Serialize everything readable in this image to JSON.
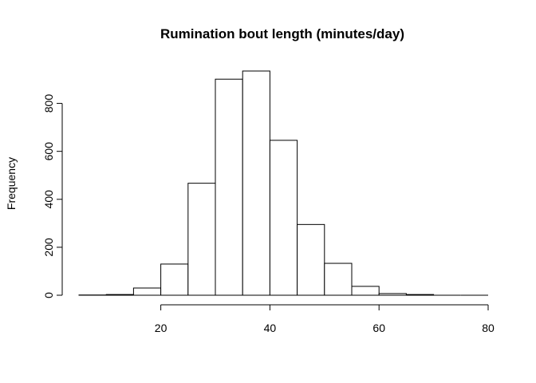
{
  "chart_data": {
    "type": "bar",
    "title": "Rumination bout length (minutes/day)",
    "xlabel": "",
    "ylabel": "Frequency",
    "bin_edges": [
      5,
      10,
      15,
      20,
      25,
      30,
      35,
      40,
      45,
      50,
      55,
      60,
      65,
      70,
      75,
      80
    ],
    "values": [
      1,
      3,
      30,
      130,
      467,
      901,
      935,
      646,
      295,
      133,
      37,
      7,
      3,
      0,
      0
    ],
    "xlim": [
      5,
      80
    ],
    "ylim": [
      0,
      935
    ],
    "x_ticks": [
      20,
      40,
      60,
      80
    ],
    "y_ticks": [
      0,
      200,
      400,
      600,
      800
    ],
    "grid": false,
    "legend": "none"
  }
}
